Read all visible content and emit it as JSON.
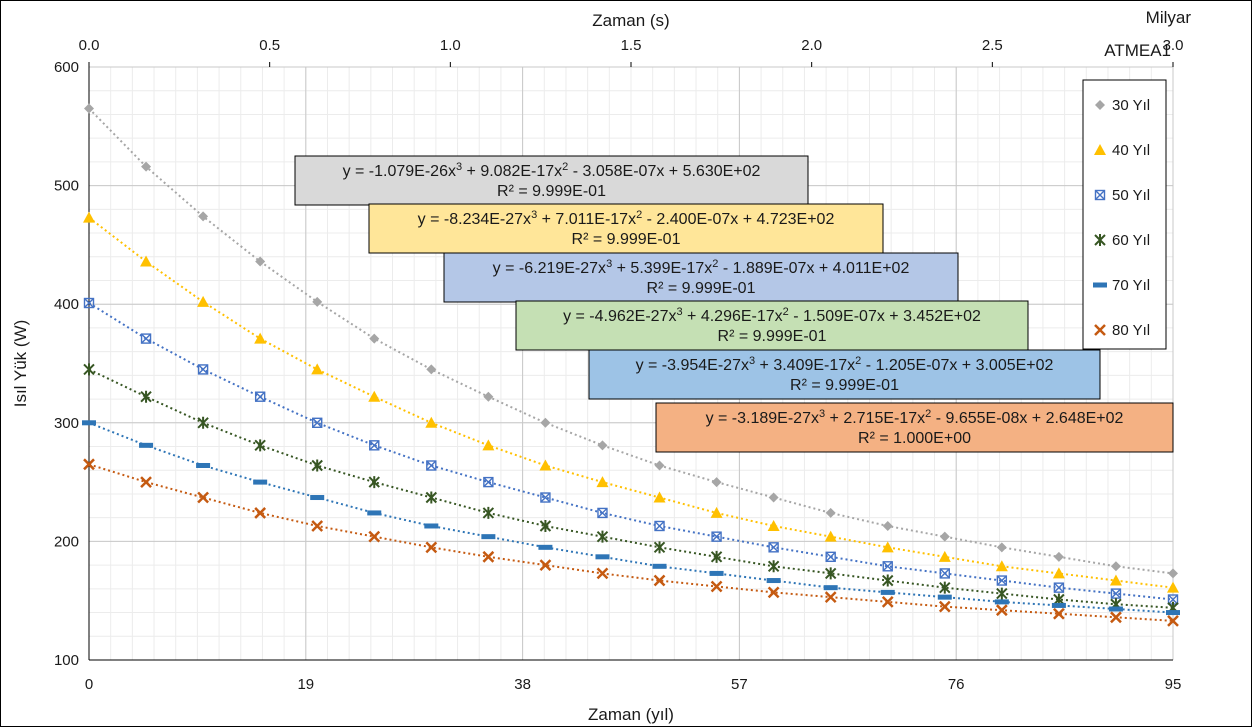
{
  "chart_data": {
    "type": "scatter",
    "title": "ATMEA1",
    "xlabel": "Zaman (yıl)",
    "ylabel": "Isıl Yük (W)",
    "x2label": "Zaman (s)",
    "x2_multiplier_label": "Milyar",
    "xlim": [
      0,
      95
    ],
    "ylim": [
      100,
      600
    ],
    "x2lim": [
      0.0,
      3.0
    ],
    "x_ticks": [
      "0",
      "19",
      "38",
      "57",
      "76",
      "95"
    ],
    "x2_ticks": [
      "0.0",
      "0.5",
      "1.0",
      "1.5",
      "2.0",
      "2.5",
      "3.0"
    ],
    "y_ticks": [
      "100",
      "200",
      "300",
      "400",
      "500",
      "600"
    ],
    "grid": true,
    "legend_position": "right",
    "trendline": "polynomial-order-3 (dotted)",
    "x": [
      0,
      5,
      10,
      15,
      20,
      25,
      30,
      35,
      40,
      45,
      50,
      55,
      60,
      65,
      70,
      75,
      80,
      85,
      90,
      95
    ],
    "series": [
      {
        "name": "30 Yıl",
        "color": "#a6a6a6",
        "marker": "diamond",
        "values": [
          565,
          516,
          474,
          436,
          402,
          371,
          345,
          322,
          300,
          281,
          264,
          250,
          237,
          224,
          213,
          204,
          195,
          187,
          179,
          173
        ]
      },
      {
        "name": "40 Yıl",
        "color": "#ffc000",
        "marker": "triangle",
        "values": [
          473,
          436,
          402,
          371,
          345,
          322,
          300,
          281,
          264,
          250,
          237,
          224,
          213,
          204,
          195,
          187,
          179,
          173,
          167,
          161
        ]
      },
      {
        "name": "50 Yıl",
        "color": "#4472c4",
        "marker": "boxed-x",
        "values": [
          401,
          371,
          345,
          322,
          300,
          281,
          264,
          250,
          237,
          224,
          213,
          204,
          195,
          187,
          179,
          173,
          167,
          161,
          156,
          151
        ]
      },
      {
        "name": "60 Yıl",
        "color": "#375623",
        "marker": "star",
        "values": [
          345,
          322,
          300,
          281,
          264,
          250,
          237,
          224,
          213,
          204,
          195,
          187,
          179,
          173,
          167,
          161,
          156,
          151,
          147,
          144
        ]
      },
      {
        "name": "70 Yıl",
        "color": "#2e75b6",
        "marker": "dash",
        "values": [
          300,
          281,
          264,
          250,
          237,
          224,
          213,
          204,
          195,
          187,
          179,
          173,
          167,
          161,
          157,
          153,
          149,
          146,
          143,
          140
        ]
      },
      {
        "name": "80 Yıl",
        "color": "#c55a11",
        "marker": "x",
        "values": [
          265,
          250,
          237,
          224,
          213,
          204,
          195,
          187,
          180,
          173,
          167,
          162,
          157,
          153,
          149,
          145,
          142,
          139,
          136,
          133
        ]
      }
    ],
    "annotations": [
      {
        "series": "30 Yıl",
        "bg": "#d9d9d9",
        "eq": [
          "y = -1.079E-26x",
          "3",
          " + 9.082E-17x",
          "2",
          " - 3.058E-07x + 5.630E+02"
        ],
        "r2": "R² = 9.999E-01"
      },
      {
        "series": "40 Yıl",
        "bg": "#ffe699",
        "eq": [
          "y = -8.234E-27x",
          "3",
          " + 7.011E-17x",
          "2",
          " - 2.400E-07x + 4.723E+02"
        ],
        "r2": "R² = 9.999E-01"
      },
      {
        "series": "50 Yıl",
        "bg": "#b4c7e7",
        "eq": [
          "y = -6.219E-27x",
          "3",
          " + 5.399E-17x",
          "2",
          " - 1.889E-07x + 4.011E+02"
        ],
        "r2": "R² = 9.999E-01"
      },
      {
        "series": "60 Yıl",
        "bg": "#c5e0b4",
        "eq": [
          "y = -4.962E-27x",
          "3",
          " + 4.296E-17x",
          "2",
          " - 1.509E-07x + 3.452E+02"
        ],
        "r2": "R² = 9.999E-01"
      },
      {
        "series": "70 Yıl",
        "bg": "#9dc3e6",
        "eq": [
          "y = -3.954E-27x",
          "3",
          " + 3.409E-17x",
          "2",
          " - 1.205E-07x + 3.005E+02"
        ],
        "r2": "R² = 9.999E-01"
      },
      {
        "series": "80 Yıl",
        "bg": "#f4b183",
        "eq": [
          "y = -3.189E-27x",
          "3",
          " + 2.715E-17x",
          "2",
          " - 9.655E-08x + 2.648E+02"
        ],
        "r2": "R² = 1.000E+00"
      }
    ]
  }
}
